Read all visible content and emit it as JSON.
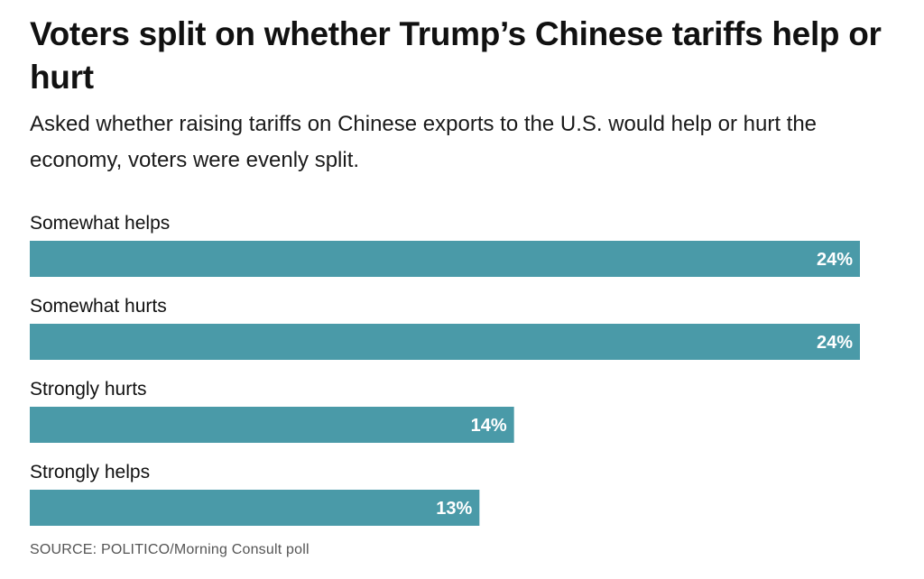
{
  "header": {
    "title": "Voters split on whether Trump’s Chinese tariffs help or hurt",
    "subtitle": "Asked whether raising tariffs on Chinese exports to the U.S. would help or hurt the economy, voters were evenly split."
  },
  "chart_data": {
    "type": "bar",
    "orientation": "horizontal",
    "categories": [
      "Somewhat helps",
      "Somewhat hurts",
      "Strongly hurts",
      "Strongly helps"
    ],
    "values": [
      24,
      24,
      14,
      13
    ],
    "value_labels": [
      "24%",
      "24%",
      "14%",
      "13%"
    ],
    "unit": "%",
    "bar_color": "#4a9aa8",
    "label_color": "#ffffff",
    "grid": false,
    "legend": "none"
  },
  "footer": {
    "source": "SOURCE: POLITICO/Morning Consult poll"
  }
}
